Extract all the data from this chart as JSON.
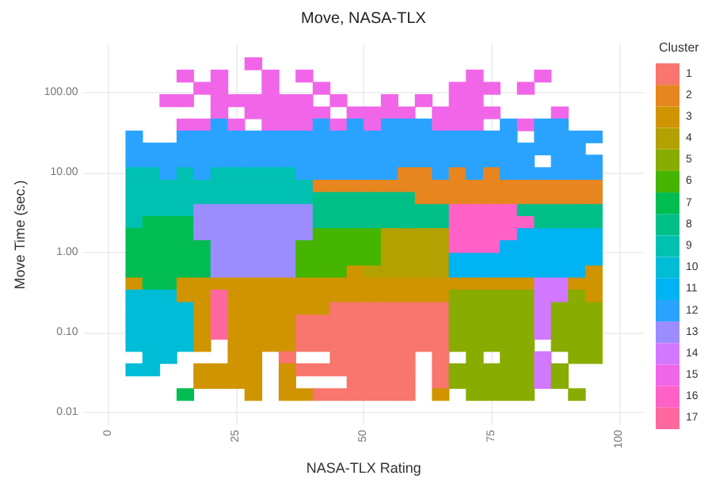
{
  "chart_data": {
    "type": "heatmap",
    "title": "Move, NASA-TLX",
    "xlabel": "NASA-TLX Rating",
    "ylabel": "Move Time (sec.)",
    "legend_title": "Cluster",
    "grid": true,
    "log": "y",
    "xlim": [
      -5,
      105
    ],
    "xticks": [
      0,
      25,
      50,
      75,
      100
    ],
    "ylim": [
      0.007,
      400
    ],
    "yticks": [
      {
        "value": 0.01,
        "label": "0.01"
      },
      {
        "value": 0.1,
        "label": "0.10"
      },
      {
        "value": 1,
        "label": "1.00"
      },
      {
        "value": 10,
        "label": "10.00"
      },
      {
        "value": 100,
        "label": "100.00"
      }
    ],
    "x": [
      5,
      8.3,
      11.7,
      15,
      18.3,
      21.7,
      25,
      28.3,
      31.7,
      35,
      38.3,
      41.7,
      45,
      48.3,
      51.7,
      55,
      58.3,
      61.7,
      65,
      68.3,
      71.7,
      75,
      78.3,
      81.7,
      85,
      88.3,
      91.7,
      95
    ],
    "y": [
      231,
      162,
      114,
      80,
      56,
      40,
      28,
      20,
      14,
      9.7,
      6.8,
      4.8,
      3.4,
      2.4,
      1.7,
      1.2,
      0.82,
      0.58,
      0.41,
      0.29,
      0.2,
      0.14,
      0.099,
      0.07,
      0.049,
      0.035,
      0.024,
      0.017
    ],
    "clim": [
      0.5,
      17.5
    ],
    "cticks": [
      1,
      2,
      3,
      4,
      5,
      6,
      7,
      8,
      9,
      10,
      11,
      12,
      13,
      14,
      15,
      16,
      17
    ],
    "colors": [
      "#f8766d",
      "#e7851e",
      "#d09400",
      "#b2a100",
      "#89ac00",
      "#45b500",
      "#00bc51",
      "#00c087",
      "#00c0b2",
      "#00bcd6",
      "#00b3f2",
      "#29a3ff",
      "#9c8dff",
      "#d277ff",
      "#f166e8",
      "#ff61c7",
      "#ff689e"
    ],
    "cells": [
      [
        null,
        null,
        null,
        null,
        null,
        null,
        null,
        15,
        null,
        null,
        null,
        null,
        null,
        null,
        null,
        null,
        null,
        null,
        null,
        null,
        null,
        null,
        null,
        null,
        null,
        null,
        null,
        null
      ],
      [
        null,
        null,
        null,
        15,
        null,
        15,
        null,
        null,
        15,
        null,
        15,
        null,
        null,
        null,
        null,
        null,
        null,
        null,
        null,
        null,
        15,
        null,
        null,
        null,
        15,
        null,
        null,
        null
      ],
      [
        null,
        null,
        null,
        null,
        15,
        15,
        null,
        null,
        15,
        null,
        null,
        15,
        null,
        null,
        null,
        null,
        null,
        null,
        null,
        15,
        15,
        15,
        null,
        15,
        null,
        null,
        null,
        null
      ],
      [
        null,
        null,
        15,
        15,
        null,
        15,
        15,
        15,
        15,
        15,
        15,
        null,
        15,
        null,
        null,
        15,
        null,
        15,
        null,
        15,
        15,
        null,
        null,
        null,
        null,
        null,
        null,
        null
      ],
      [
        null,
        null,
        null,
        null,
        null,
        15,
        null,
        15,
        15,
        15,
        15,
        15,
        null,
        15,
        15,
        15,
        15,
        null,
        15,
        15,
        15,
        15,
        null,
        null,
        null,
        15,
        null,
        null
      ],
      [
        null,
        null,
        null,
        15,
        15,
        12,
        15,
        null,
        15,
        15,
        15,
        12,
        15,
        12,
        15,
        12,
        12,
        12,
        15,
        15,
        15,
        null,
        12,
        15,
        12,
        12,
        null,
        null
      ],
      [
        12,
        null,
        null,
        12,
        12,
        12,
        12,
        12,
        12,
        12,
        12,
        12,
        12,
        12,
        12,
        12,
        12,
        12,
        12,
        12,
        12,
        12,
        12,
        null,
        12,
        12,
        12,
        12
      ],
      [
        12,
        12,
        12,
        12,
        12,
        12,
        12,
        12,
        12,
        12,
        12,
        12,
        12,
        12,
        12,
        12,
        12,
        12,
        12,
        12,
        12,
        12,
        12,
        12,
        12,
        12,
        12,
        null
      ],
      [
        12,
        12,
        12,
        12,
        12,
        12,
        12,
        12,
        12,
        12,
        12,
        12,
        12,
        12,
        12,
        12,
        12,
        12,
        12,
        12,
        12,
        12,
        12,
        12,
        null,
        12,
        12,
        12
      ],
      [
        9,
        9,
        12,
        9,
        12,
        9,
        9,
        9,
        9,
        9,
        12,
        12,
        12,
        12,
        12,
        12,
        2,
        2,
        12,
        2,
        12,
        2,
        12,
        12,
        12,
        12,
        12,
        12
      ],
      [
        9,
        9,
        9,
        9,
        9,
        9,
        9,
        9,
        9,
        9,
        9,
        2,
        2,
        2,
        2,
        2,
        2,
        2,
        2,
        2,
        2,
        2,
        2,
        2,
        2,
        2,
        2,
        2
      ],
      [
        9,
        9,
        9,
        9,
        9,
        9,
        9,
        9,
        9,
        9,
        9,
        8,
        8,
        8,
        8,
        8,
        8,
        2,
        2,
        2,
        2,
        2,
        2,
        2,
        2,
        2,
        2,
        2
      ],
      [
        9,
        9,
        9,
        9,
        13,
        13,
        13,
        13,
        13,
        13,
        13,
        8,
        8,
        8,
        8,
        8,
        8,
        8,
        8,
        16,
        16,
        16,
        16,
        8,
        8,
        8,
        8,
        8
      ],
      [
        9,
        7,
        7,
        7,
        13,
        13,
        13,
        13,
        13,
        13,
        13,
        8,
        8,
        8,
        8,
        8,
        8,
        8,
        8,
        16,
        16,
        16,
        16,
        16,
        8,
        8,
        8,
        8
      ],
      [
        7,
        7,
        7,
        7,
        13,
        13,
        13,
        13,
        13,
        13,
        13,
        6,
        6,
        6,
        6,
        4,
        4,
        4,
        4,
        16,
        16,
        16,
        16,
        11,
        11,
        11,
        11,
        11
      ],
      [
        7,
        7,
        7,
        7,
        7,
        13,
        13,
        13,
        13,
        13,
        6,
        6,
        6,
        6,
        6,
        4,
        4,
        4,
        4,
        16,
        16,
        16,
        11,
        11,
        11,
        11,
        11,
        11
      ],
      [
        7,
        7,
        7,
        7,
        7,
        13,
        13,
        13,
        13,
        13,
        6,
        6,
        6,
        6,
        6,
        4,
        4,
        4,
        4,
        11,
        11,
        11,
        11,
        11,
        11,
        11,
        11,
        11
      ],
      [
        7,
        7,
        7,
        7,
        7,
        13,
        13,
        13,
        13,
        13,
        6,
        6,
        6,
        3,
        4,
        4,
        4,
        4,
        4,
        11,
        11,
        11,
        11,
        11,
        11,
        11,
        11,
        3
      ],
      [
        3,
        7,
        7,
        3,
        3,
        3,
        3,
        3,
        3,
        3,
        3,
        3,
        3,
        3,
        3,
        3,
        3,
        3,
        3,
        3,
        3,
        3,
        3,
        3,
        14,
        14,
        3,
        3
      ],
      [
        10,
        10,
        10,
        3,
        3,
        17,
        3,
        3,
        3,
        3,
        3,
        3,
        3,
        3,
        3,
        3,
        3,
        3,
        3,
        5,
        5,
        5,
        5,
        5,
        14,
        14,
        5,
        3
      ],
      [
        10,
        10,
        10,
        10,
        3,
        17,
        3,
        3,
        3,
        3,
        3,
        3,
        1,
        1,
        1,
        1,
        1,
        1,
        1,
        5,
        5,
        5,
        5,
        5,
        14,
        5,
        5,
        5
      ],
      [
        10,
        10,
        10,
        10,
        3,
        17,
        3,
        3,
        3,
        3,
        1,
        1,
        1,
        1,
        1,
        1,
        1,
        1,
        1,
        5,
        5,
        5,
        5,
        5,
        14,
        5,
        5,
        5
      ],
      [
        10,
        10,
        10,
        10,
        3,
        17,
        3,
        3,
        3,
        3,
        1,
        1,
        1,
        1,
        1,
        1,
        1,
        1,
        1,
        5,
        5,
        5,
        5,
        5,
        14,
        5,
        5,
        5
      ],
      [
        10,
        10,
        10,
        10,
        3,
        null,
        3,
        3,
        3,
        3,
        1,
        1,
        1,
        1,
        1,
        1,
        1,
        1,
        1,
        5,
        5,
        5,
        5,
        5,
        null,
        5,
        5,
        5
      ],
      [
        null,
        10,
        10,
        null,
        null,
        null,
        3,
        3,
        null,
        1,
        null,
        null,
        1,
        1,
        1,
        1,
        1,
        null,
        1,
        null,
        5,
        null,
        5,
        5,
        14,
        null,
        5,
        5
      ],
      [
        10,
        10,
        null,
        null,
        3,
        3,
        3,
        3,
        null,
        3,
        1,
        1,
        1,
        1,
        1,
        1,
        1,
        null,
        1,
        5,
        5,
        5,
        5,
        5,
        14,
        5,
        null,
        null
      ],
      [
        null,
        null,
        null,
        null,
        3,
        3,
        3,
        3,
        null,
        3,
        null,
        null,
        null,
        1,
        1,
        1,
        1,
        null,
        1,
        5,
        5,
        5,
        5,
        5,
        14,
        5,
        null,
        null
      ],
      [
        null,
        null,
        null,
        7,
        null,
        null,
        null,
        3,
        null,
        3,
        3,
        1,
        1,
        1,
        1,
        1,
        1,
        null,
        3,
        null,
        5,
        5,
        5,
        5,
        null,
        null,
        5,
        null
      ]
    ]
  }
}
